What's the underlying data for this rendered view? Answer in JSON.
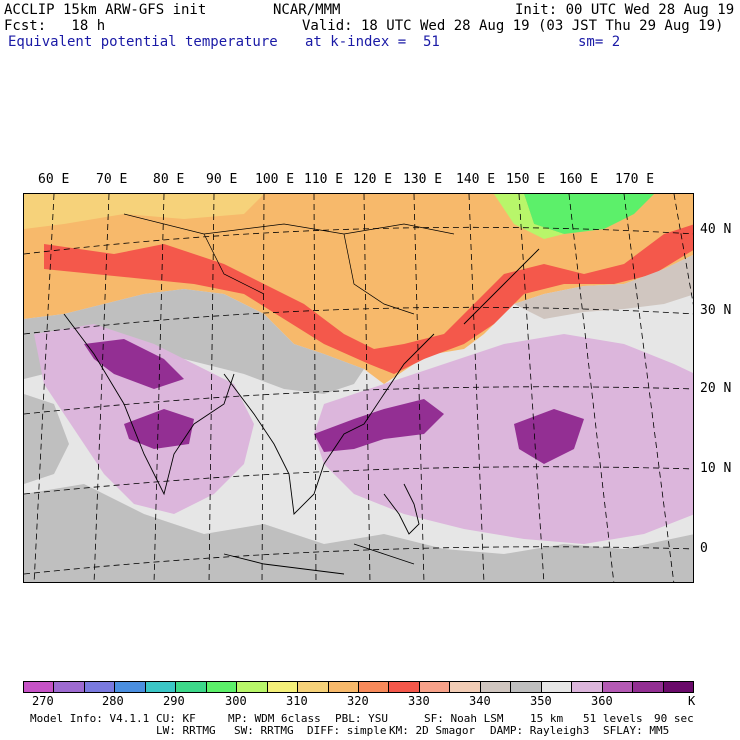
{
  "header": {
    "model": "ACCLIP 15km ARW-GFS init",
    "org": "NCAR/MMM",
    "init": "Init: 00 UTC Wed 28 Aug 19",
    "fcst": "Fcst:   18 h",
    "valid": "Valid: 18 UTC Wed 28 Aug 19 (03 JST Thu 29 Aug 19)",
    "field": "Equivalent potential temperature",
    "level": "at k-index =  51",
    "smooth": "sm= 2"
  },
  "map": {
    "lon_labels": [
      "60 E",
      "70 E",
      "80 E",
      "90 E",
      "100 E",
      "110 E",
      "120 E",
      "130 E",
      "140 E",
      "150 E",
      "160 E",
      "170 E"
    ],
    "lat_labels": [
      "40 N",
      "30 N",
      "20 N",
      "10 N",
      "0"
    ]
  },
  "colorbar": {
    "colors": [
      "#c653c6",
      "#9e6bd1",
      "#7a7adf",
      "#4b8fe0",
      "#3bc6c6",
      "#3dd88a",
      "#5cf06a",
      "#b8f66a",
      "#f4f07a",
      "#f6d27a",
      "#f7b96b",
      "#f78a5b",
      "#f4584b",
      "#f7a28a",
      "#f2cdb6",
      "#d0c6c0",
      "#bfbfbf",
      "#e6e6e6",
      "#dcb6dc",
      "#b45ab4",
      "#932f93",
      "#6a0a6a"
    ],
    "labels": [
      "270",
      "280",
      "290",
      "300",
      "310",
      "320",
      "330",
      "340",
      "350",
      "360"
    ],
    "unit": "K"
  },
  "footer": {
    "line1": [
      "Model Info: V4.1.1",
      "CU: KF",
      "MP: WDM 6class",
      "PBL: YSU",
      "SF: Noah LSM",
      "15 km",
      "51 levels",
      "90 sec"
    ],
    "line2": [
      "LW: RRTMG",
      "SW: RRTMG",
      "DIFF: simple",
      "KM: 2D Smagor",
      "DAMP: Rayleigh3",
      "SFLAY: MM5"
    ]
  }
}
